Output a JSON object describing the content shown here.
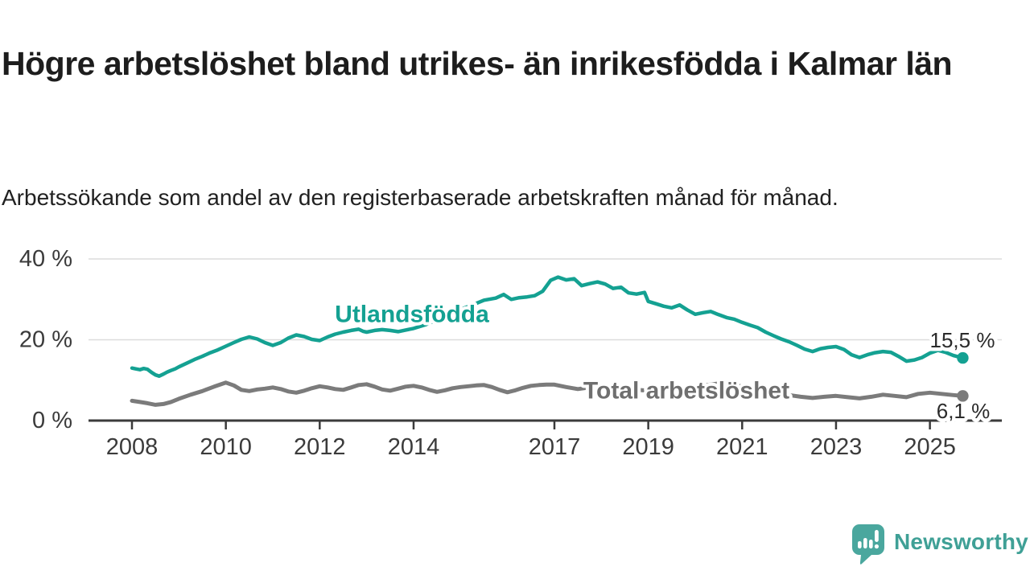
{
  "header": {
    "title": "Högre arbetslöshet bland utrikes- än inrikesfödda i Kalmar län",
    "subtitle": "Arbetssökande som andel av den registerbaserade arbetskraften månad för månad."
  },
  "colors": {
    "accent_teal": "#14a192",
    "line_gray": "#7b7b7b",
    "label_gray": "#6f6f6f",
    "axis": "#3b3b3b",
    "grid": "#dcdcdc",
    "value_label": "#2b2b2b",
    "brand_teal": "#4aa79e"
  },
  "chart_data": {
    "type": "line",
    "unit": "%",
    "grid": "horizontal-only",
    "ylim": [
      0,
      42
    ],
    "x_range": [
      2008,
      2025.75
    ],
    "y_ticks": [
      {
        "value": 0,
        "label": "0 %"
      },
      {
        "value": 20,
        "label": "20 %"
      },
      {
        "value": 40,
        "label": "40 %"
      }
    ],
    "x_ticks": [
      {
        "year": 2008,
        "label": "2008"
      },
      {
        "year": 2010,
        "label": "2010"
      },
      {
        "year": 2012,
        "label": "2012"
      },
      {
        "year": 2014,
        "label": "2014"
      },
      {
        "year": 2017,
        "label": "2017"
      },
      {
        "year": 2019,
        "label": "2019"
      },
      {
        "year": 2021,
        "label": "2021"
      },
      {
        "year": 2023,
        "label": "2023"
      },
      {
        "year": 2025,
        "label": "2025"
      }
    ],
    "series": [
      {
        "id": "utlandsfodda",
        "name": "Utlandsfödda",
        "color": "#14a192",
        "end_value": 15.5,
        "end_label": "15,5 %",
        "points": [
          [
            2008.0,
            13.0
          ],
          [
            2008.08,
            12.8
          ],
          [
            2008.17,
            12.6
          ],
          [
            2008.25,
            12.9
          ],
          [
            2008.33,
            12.7
          ],
          [
            2008.42,
            11.9
          ],
          [
            2008.5,
            11.3
          ],
          [
            2008.58,
            11.0
          ],
          [
            2008.67,
            11.5
          ],
          [
            2008.75,
            12.0
          ],
          [
            2008.83,
            12.4
          ],
          [
            2008.92,
            12.8
          ],
          [
            2009.0,
            13.3
          ],
          [
            2009.17,
            14.2
          ],
          [
            2009.33,
            15.1
          ],
          [
            2009.5,
            15.9
          ],
          [
            2009.67,
            16.8
          ],
          [
            2009.83,
            17.5
          ],
          [
            2010.0,
            18.4
          ],
          [
            2010.17,
            19.3
          ],
          [
            2010.33,
            20.1
          ],
          [
            2010.5,
            20.7
          ],
          [
            2010.67,
            20.2
          ],
          [
            2010.83,
            19.3
          ],
          [
            2011.0,
            18.6
          ],
          [
            2011.17,
            19.3
          ],
          [
            2011.33,
            20.4
          ],
          [
            2011.5,
            21.2
          ],
          [
            2011.67,
            20.8
          ],
          [
            2011.83,
            20.1
          ],
          [
            2012.0,
            19.8
          ],
          [
            2012.17,
            20.7
          ],
          [
            2012.33,
            21.4
          ],
          [
            2012.5,
            21.9
          ],
          [
            2012.67,
            22.3
          ],
          [
            2012.83,
            22.6
          ],
          [
            2012.92,
            22.1
          ],
          [
            2013.0,
            21.9
          ],
          [
            2013.17,
            22.3
          ],
          [
            2013.33,
            22.5
          ],
          [
            2013.5,
            22.3
          ],
          [
            2013.67,
            22.0
          ],
          [
            2013.83,
            22.4
          ],
          [
            2014.0,
            22.8
          ],
          [
            2014.25,
            23.7
          ],
          [
            2014.5,
            25.0
          ],
          [
            2014.75,
            26.4
          ],
          [
            2015.0,
            27.5
          ],
          [
            2015.25,
            28.6
          ],
          [
            2015.5,
            29.8
          ],
          [
            2015.75,
            30.3
          ],
          [
            2015.92,
            31.2
          ],
          [
            2016.08,
            30.0
          ],
          [
            2016.25,
            30.4
          ],
          [
            2016.42,
            30.6
          ],
          [
            2016.58,
            30.9
          ],
          [
            2016.75,
            32.0
          ],
          [
            2016.92,
            34.7
          ],
          [
            2017.08,
            35.5
          ],
          [
            2017.25,
            34.8
          ],
          [
            2017.42,
            35.1
          ],
          [
            2017.58,
            33.4
          ],
          [
            2017.75,
            33.9
          ],
          [
            2017.92,
            34.3
          ],
          [
            2018.08,
            33.8
          ],
          [
            2018.25,
            32.7
          ],
          [
            2018.42,
            33.0
          ],
          [
            2018.58,
            31.6
          ],
          [
            2018.75,
            31.3
          ],
          [
            2018.92,
            31.7
          ],
          [
            2019.0,
            29.5
          ],
          [
            2019.17,
            28.9
          ],
          [
            2019.33,
            28.3
          ],
          [
            2019.5,
            27.9
          ],
          [
            2019.67,
            28.6
          ],
          [
            2019.83,
            27.4
          ],
          [
            2020.0,
            26.3
          ],
          [
            2020.17,
            26.7
          ],
          [
            2020.33,
            27.0
          ],
          [
            2020.5,
            26.2
          ],
          [
            2020.67,
            25.5
          ],
          [
            2020.83,
            25.1
          ],
          [
            2021.0,
            24.3
          ],
          [
            2021.17,
            23.6
          ],
          [
            2021.33,
            23.0
          ],
          [
            2021.5,
            21.9
          ],
          [
            2021.67,
            21.0
          ],
          [
            2021.83,
            20.2
          ],
          [
            2022.0,
            19.5
          ],
          [
            2022.17,
            18.6
          ],
          [
            2022.33,
            17.7
          ],
          [
            2022.5,
            17.1
          ],
          [
            2022.67,
            17.8
          ],
          [
            2022.83,
            18.1
          ],
          [
            2023.0,
            18.3
          ],
          [
            2023.17,
            17.6
          ],
          [
            2023.33,
            16.3
          ],
          [
            2023.5,
            15.6
          ],
          [
            2023.67,
            16.3
          ],
          [
            2023.83,
            16.8
          ],
          [
            2024.0,
            17.1
          ],
          [
            2024.17,
            16.9
          ],
          [
            2024.33,
            15.9
          ],
          [
            2024.5,
            14.7
          ],
          [
            2024.67,
            15.0
          ],
          [
            2024.83,
            15.6
          ],
          [
            2025.0,
            16.7
          ],
          [
            2025.17,
            17.4
          ],
          [
            2025.33,
            16.9
          ],
          [
            2025.5,
            16.1
          ],
          [
            2025.7,
            15.5
          ]
        ]
      },
      {
        "id": "total",
        "name": "Total arbetslöshet",
        "color": "#7b7b7b",
        "end_value": 6.1,
        "end_label": "6,1 %",
        "points": [
          [
            2008.0,
            4.9
          ],
          [
            2008.17,
            4.6
          ],
          [
            2008.33,
            4.3
          ],
          [
            2008.5,
            3.9
          ],
          [
            2008.67,
            4.1
          ],
          [
            2008.83,
            4.6
          ],
          [
            2009.0,
            5.4
          ],
          [
            2009.25,
            6.4
          ],
          [
            2009.5,
            7.3
          ],
          [
            2009.75,
            8.4
          ],
          [
            2010.0,
            9.4
          ],
          [
            2010.17,
            8.7
          ],
          [
            2010.33,
            7.6
          ],
          [
            2010.5,
            7.3
          ],
          [
            2010.67,
            7.7
          ],
          [
            2010.83,
            7.9
          ],
          [
            2011.0,
            8.2
          ],
          [
            2011.17,
            7.8
          ],
          [
            2011.33,
            7.2
          ],
          [
            2011.5,
            6.9
          ],
          [
            2011.67,
            7.4
          ],
          [
            2011.83,
            8.0
          ],
          [
            2012.0,
            8.5
          ],
          [
            2012.17,
            8.2
          ],
          [
            2012.33,
            7.8
          ],
          [
            2012.5,
            7.6
          ],
          [
            2012.67,
            8.2
          ],
          [
            2012.83,
            8.8
          ],
          [
            2013.0,
            9.0
          ],
          [
            2013.17,
            8.4
          ],
          [
            2013.33,
            7.7
          ],
          [
            2013.5,
            7.4
          ],
          [
            2013.67,
            7.9
          ],
          [
            2013.83,
            8.4
          ],
          [
            2014.0,
            8.6
          ],
          [
            2014.17,
            8.2
          ],
          [
            2014.33,
            7.6
          ],
          [
            2014.5,
            7.1
          ],
          [
            2014.67,
            7.5
          ],
          [
            2014.83,
            8.0
          ],
          [
            2015.0,
            8.3
          ],
          [
            2015.17,
            8.5
          ],
          [
            2015.33,
            8.7
          ],
          [
            2015.5,
            8.8
          ],
          [
            2015.67,
            8.3
          ],
          [
            2015.83,
            7.6
          ],
          [
            2016.0,
            7.0
          ],
          [
            2016.17,
            7.5
          ],
          [
            2016.33,
            8.1
          ],
          [
            2016.5,
            8.6
          ],
          [
            2016.67,
            8.8
          ],
          [
            2016.83,
            8.9
          ],
          [
            2017.0,
            8.9
          ],
          [
            2017.25,
            8.3
          ],
          [
            2017.5,
            7.8
          ],
          [
            2017.75,
            8.2
          ],
          [
            2018.0,
            8.0
          ],
          [
            2018.25,
            7.5
          ],
          [
            2018.5,
            7.2
          ],
          [
            2018.75,
            7.6
          ],
          [
            2019.0,
            7.4
          ],
          [
            2019.25,
            7.0
          ],
          [
            2019.5,
            7.2
          ],
          [
            2019.75,
            7.5
          ],
          [
            2020.0,
            7.8
          ],
          [
            2020.25,
            8.8
          ],
          [
            2020.5,
            9.2
          ],
          [
            2020.75,
            8.8
          ],
          [
            2021.0,
            8.5
          ],
          [
            2021.25,
            8.0
          ],
          [
            2021.5,
            7.4
          ],
          [
            2021.75,
            6.8
          ],
          [
            2022.0,
            6.3
          ],
          [
            2022.25,
            5.9
          ],
          [
            2022.5,
            5.6
          ],
          [
            2022.75,
            5.9
          ],
          [
            2023.0,
            6.1
          ],
          [
            2023.25,
            5.8
          ],
          [
            2023.5,
            5.5
          ],
          [
            2023.75,
            5.9
          ],
          [
            2024.0,
            6.4
          ],
          [
            2024.25,
            6.1
          ],
          [
            2024.5,
            5.8
          ],
          [
            2024.75,
            6.6
          ],
          [
            2025.0,
            6.9
          ],
          [
            2025.25,
            6.6
          ],
          [
            2025.5,
            6.3
          ],
          [
            2025.7,
            6.1
          ]
        ]
      }
    ]
  },
  "footer": {
    "brand": "Newsworthy"
  }
}
